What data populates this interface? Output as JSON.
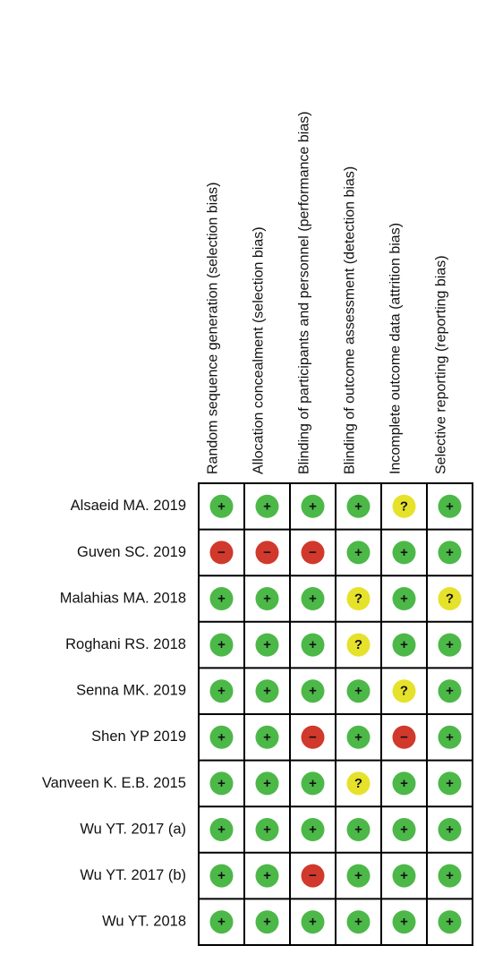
{
  "table": {
    "columns": [
      "Random sequence generation (selection bias)",
      "Allocation concealment (selection bias)",
      "Blinding of participants and personnel (performance bias)",
      "Blinding of outcome assessment (detection bias)",
      "Incomplete outcome data (attrition bias)",
      "Selective reporting (reporting bias)"
    ],
    "judgement_colors": [
      {
        "symbol": "+",
        "color": "#4cb848"
      },
      {
        "symbol": "−",
        "color": "#d0392b"
      },
      {
        "symbol": "?",
        "color": "#e6e22b"
      }
    ],
    "rows": [
      {
        "study": "Alsaeid MA. 2019",
        "cells": [
          "+",
          "+",
          "+",
          "+",
          "?",
          "+"
        ]
      },
      {
        "study": "Guven SC. 2019",
        "cells": [
          "−",
          "−",
          "−",
          "+",
          "+",
          "+"
        ]
      },
      {
        "study": "Malahias MA. 2018",
        "cells": [
          "+",
          "+",
          "+",
          "?",
          "+",
          "?"
        ]
      },
      {
        "study": "Roghani RS. 2018",
        "cells": [
          "+",
          "+",
          "+",
          "?",
          "+",
          "+"
        ]
      },
      {
        "study": "Senna MK. 2019",
        "cells": [
          "+",
          "+",
          "+",
          "+",
          "?",
          "+"
        ]
      },
      {
        "study": "Shen YP 2019",
        "cells": [
          "+",
          "+",
          "−",
          "+",
          "−",
          "+"
        ]
      },
      {
        "study": "Vanveen K. E.B. 2015",
        "cells": [
          "+",
          "+",
          "+",
          "?",
          "+",
          "+"
        ]
      },
      {
        "study": "Wu YT. 2017 (a)",
        "cells": [
          "+",
          "+",
          "+",
          "+",
          "+",
          "+"
        ]
      },
      {
        "study": "Wu YT. 2017 (b)",
        "cells": [
          "+",
          "+",
          "−",
          "+",
          "+",
          "+"
        ]
      },
      {
        "study": "Wu YT. 2018",
        "cells": [
          "+",
          "+",
          "+",
          "+",
          "+",
          "+"
        ]
      }
    ]
  }
}
